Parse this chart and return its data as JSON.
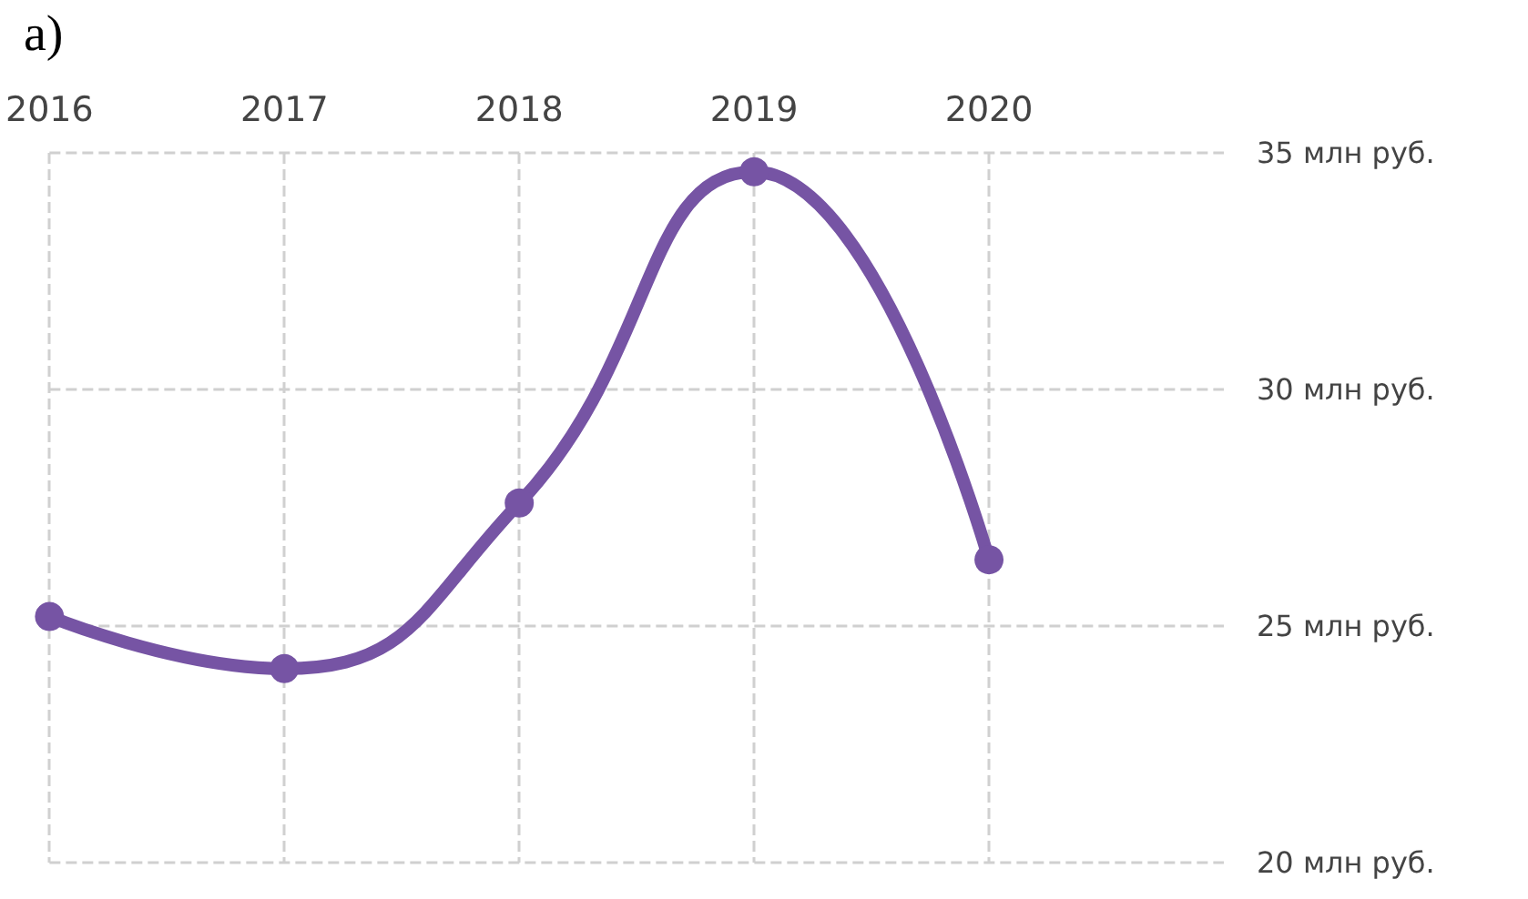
{
  "chart_data": {
    "type": "line",
    "title": "a)",
    "x": [
      2016,
      2017,
      2018,
      2019,
      2020
    ],
    "values": [
      25.2,
      24.1,
      27.6,
      34.6,
      26.4
    ],
    "color": "#7654a4",
    "xlim": [
      2016,
      2021
    ],
    "xticks": [
      2016,
      2017,
      2018,
      2019,
      2020
    ],
    "ylim": [
      20,
      35
    ],
    "yticks": [
      {
        "value": 20,
        "label": "20 млн руб."
      },
      {
        "value": 25,
        "label": "25 млн руб."
      },
      {
        "value": 30,
        "label": "30 млн руб."
      },
      {
        "value": 35,
        "label": "35 млн руб."
      }
    ],
    "grid": true,
    "marker": "circle",
    "line_style": "solid"
  }
}
